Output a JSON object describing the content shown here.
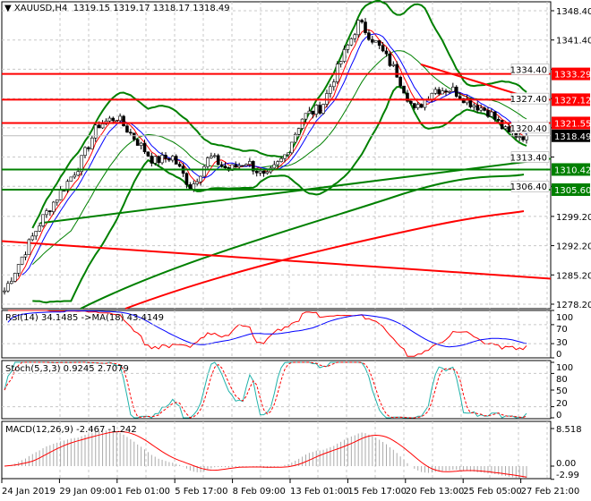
{
  "header": {
    "symbol": "XAUUSD,H4",
    "ohlc": "1319.15 1319.17 1318.17 1318.49"
  },
  "price_axis": {
    "ticks": [
      "1348.40",
      "1341.40",
      "1334.40",
      "1327.40",
      "1320.40",
      "1313.40",
      "1306.40",
      "1299.20",
      "1292.20",
      "1285.20",
      "1278.20"
    ],
    "range": [
      1278.2,
      1348.4
    ]
  },
  "levels": [
    {
      "label": "1333.29",
      "value": 1333.29,
      "color": "#ff0000"
    },
    {
      "label": "1327.12",
      "value": 1327.12,
      "color": "#ff0000"
    },
    {
      "label": "1321.55",
      "value": 1321.55,
      "color": "#ff0000"
    },
    {
      "label": "1310.42",
      "value": 1310.42,
      "color": "#008000"
    },
    {
      "label": "1305.60",
      "value": 1305.6,
      "color": "#008000"
    }
  ],
  "current_price": {
    "label": "1318.49",
    "value": 1318.49
  },
  "rsi": {
    "label": "RSI(14) 34.1485  ->MA(18) 43.4149",
    "ticks": [
      "100",
      "70",
      "30",
      "0"
    ]
  },
  "stoch": {
    "label": "Stoch(5,3,3) 0.9245 2.7079",
    "ticks": [
      "100",
      "80",
      "50",
      "20",
      "0"
    ]
  },
  "macd": {
    "label": "MACD(12,26,9) -2.467 -1.242",
    "ticks": [
      "8.518",
      "0.00",
      "-2.99"
    ]
  },
  "time_axis": [
    "24 Jan 2019",
    "29 Jan 09:00",
    "1 Feb 01:00",
    "5 Feb 17:00",
    "8 Feb 09:00",
    "13 Feb 01:00",
    "15 Feb 17:00",
    "20 Feb 13:00",
    "25 Feb 05:00",
    "27 Feb 21:00"
  ],
  "chart_data": {
    "type": "candlestick",
    "title": "XAUUSD,H4",
    "ylim": [
      1278.2,
      1348.4
    ],
    "close_keypoints": [
      1281.4,
      1290,
      1298.5,
      1305,
      1311.4,
      1321,
      1323,
      1317.8,
      1312.4,
      1313.5,
      1306,
      1313.5,
      1310.3,
      1312.4,
      1308.2,
      1313.5,
      1323,
      1325.3,
      1336,
      1345.6,
      1340.3,
      1333.8,
      1324.2,
      1329.6,
      1329.6,
      1326.4,
      1324.2,
      1318.9,
      1318.49
    ],
    "trendlines": [
      {
        "color": "#ff0000",
        "from": [
          0,
          1293.3
        ],
        "to": [
          1,
          1284.3
        ]
      },
      {
        "color": "#008000",
        "from": [
          0.07,
          1297.6
        ],
        "to": [
          1,
          1313.0
        ]
      }
    ]
  }
}
